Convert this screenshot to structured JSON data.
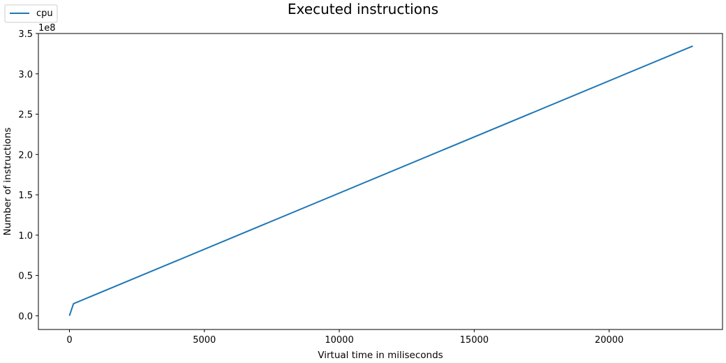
{
  "chart_data": {
    "type": "line",
    "title": "Executed instructions",
    "xlabel": "Virtual time in miliseconds",
    "ylabel": "Number of instructions",
    "y_offset_text": "1e8",
    "xlim": [
      -1150,
      24200
    ],
    "ylim": [
      -0.17,
      3.5
    ],
    "x_ticks": [
      0,
      5000,
      10000,
      15000,
      20000
    ],
    "x_tick_labels": [
      "0",
      "5000",
      "10000",
      "15000",
      "20000"
    ],
    "y_ticks": [
      0.0,
      0.5,
      1.0,
      1.5,
      2.0,
      2.5,
      3.0,
      3.5
    ],
    "y_tick_labels": [
      "0.0",
      "0.5",
      "1.0",
      "1.5",
      "2.0",
      "2.5",
      "3.0",
      "3.5"
    ],
    "grid": false,
    "legend_position": "top-left",
    "series": [
      {
        "name": "cpu",
        "color": "#1f77b4",
        "x": [
          0,
          150,
          23100
        ],
        "y": [
          0.0,
          0.15,
          3.345
        ]
      }
    ]
  }
}
